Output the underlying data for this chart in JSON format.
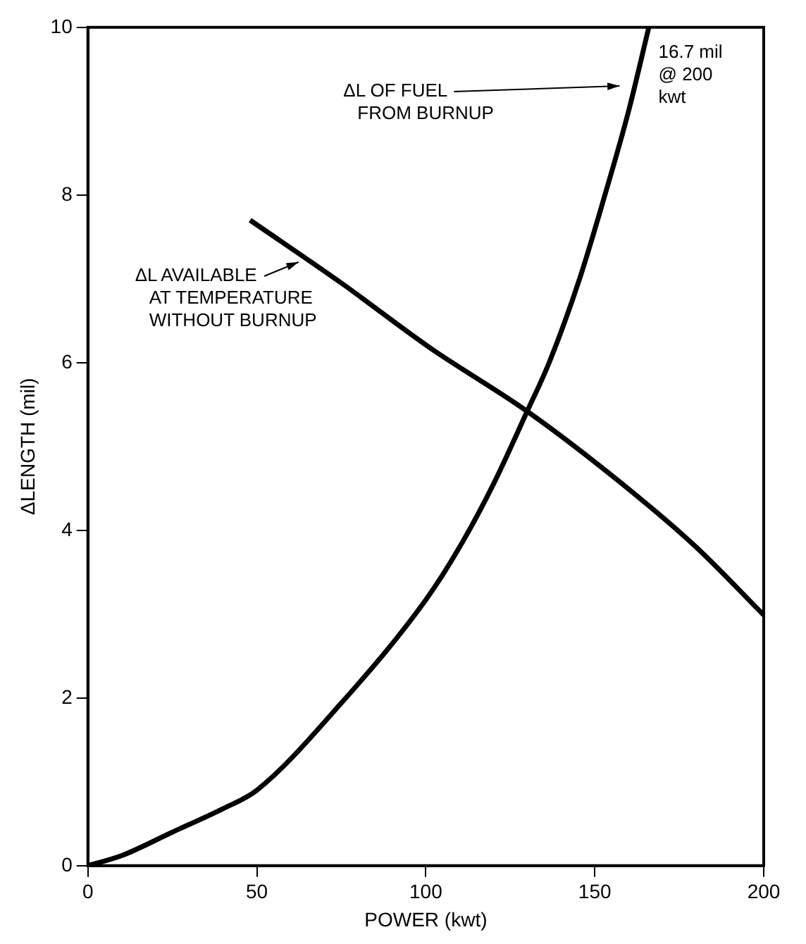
{
  "chart_data": {
    "type": "line",
    "xlabel": "POWER (kwt)",
    "ylabel": "ΔLENGTH (mil)",
    "xlim": [
      0,
      200
    ],
    "ylim": [
      0,
      10
    ],
    "xticks": [
      0,
      50,
      100,
      150,
      200
    ],
    "yticks": [
      0,
      2,
      4,
      6,
      8,
      10
    ],
    "grid": false,
    "legend": false,
    "marker": "none",
    "series": [
      {
        "color": "#000000",
        "x": [
          0,
          10,
          25,
          40,
          50,
          75,
          100,
          110,
          120,
          130,
          136.5,
          145.5,
          153,
          160,
          166
        ],
        "values": [
          0,
          0.12,
          0.4,
          0.68,
          0.9,
          1.94,
          3.17,
          3.8,
          4.55,
          5.42,
          6,
          7,
          8,
          9,
          10
        ]
      },
      {
        "color": "#000000",
        "x": [
          48,
          75,
          101.5,
          130,
          157,
          180,
          200
        ],
        "values": [
          7.7,
          6.95,
          6.17,
          5.42,
          4.59,
          3.8,
          2.99
        ]
      }
    ],
    "annotations": [
      {
        "text": "ΔL OF FUEL\nFROM BURNUP",
        "x": 159,
        "y": 9.3
      },
      {
        "text": "16.7 mil\n@ 200\nkwt",
        "x": 163,
        "y": 9.7
      },
      {
        "text": "ΔL AVAILABLE\nAT TEMPERATURE\nWITHOUT BURNUP",
        "x": 64,
        "y": 7.2
      }
    ]
  }
}
